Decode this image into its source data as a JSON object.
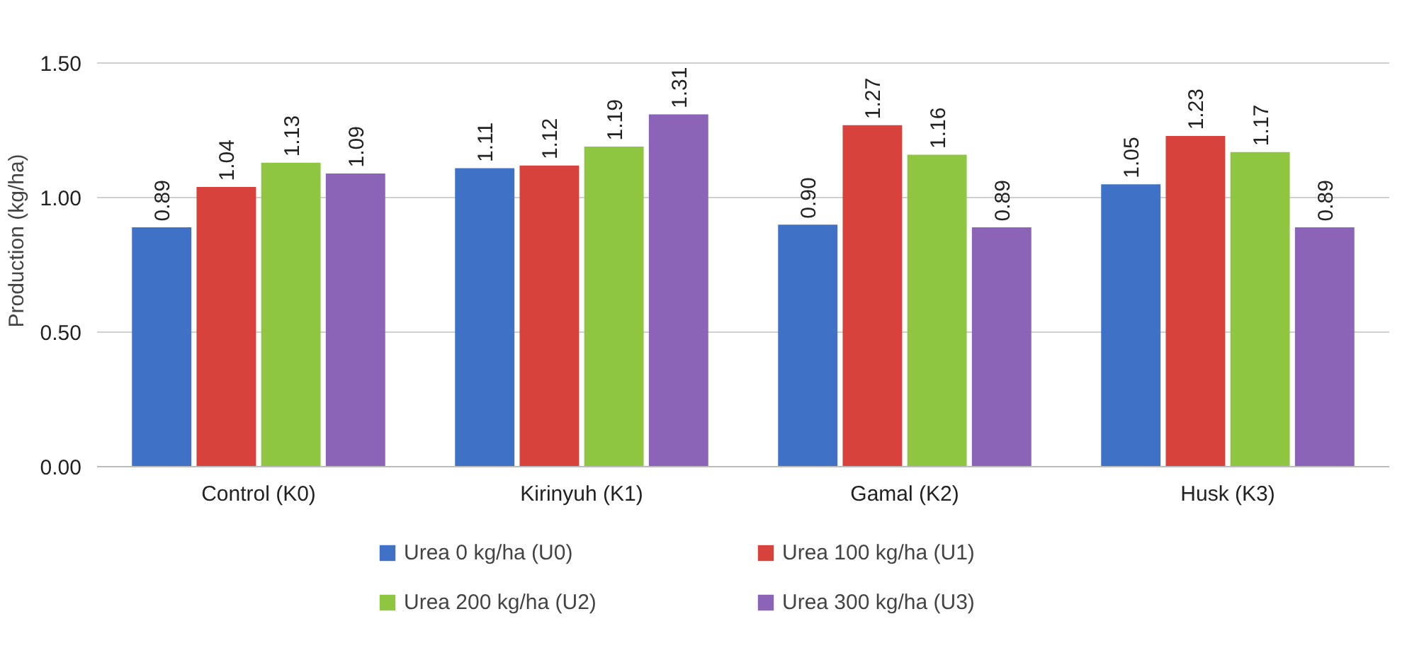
{
  "chart_data": {
    "type": "bar",
    "ylabel": "Production (kg/ha)",
    "categories": [
      "Control (K0)",
      "Kirinyuh (K1)",
      "Gamal (K2)",
      "Husk (K3)"
    ],
    "series": [
      {
        "name": "Urea 0 kg/ha (U0)",
        "color": "#3f72c6",
        "values": [
          0.89,
          1.11,
          0.9,
          1.05
        ],
        "value_labels": [
          "0.89",
          "1.11",
          "0.90",
          "1.05"
        ]
      },
      {
        "name": "Urea 100 kg/ha (U1)",
        "color": "#d8423c",
        "values": [
          1.04,
          1.12,
          1.27,
          1.23
        ],
        "value_labels": [
          "1.04",
          "1.12",
          "1.27",
          "1.23"
        ]
      },
      {
        "name": "Urea 200 kg/ha (U2)",
        "color": "#8fc641",
        "values": [
          1.13,
          1.19,
          1.16,
          1.17
        ],
        "value_labels": [
          "1.13",
          "1.19",
          "1.16",
          "1.17"
        ]
      },
      {
        "name": "Urea 300 kg/ha (U3)",
        "color": "#8b64b8",
        "values": [
          1.09,
          1.31,
          0.89,
          0.89
        ],
        "value_labels": [
          "1.09",
          "1.31",
          "0.89",
          "0.89"
        ]
      }
    ],
    "ylim": [
      0,
      1.5
    ],
    "yticks": [
      {
        "value": 0,
        "label": "0.00"
      },
      {
        "value": 0.5,
        "label": "0.50"
      },
      {
        "value": 1.0,
        "label": "1.00"
      },
      {
        "value": 1.5,
        "label": "1.50"
      }
    ],
    "grid": "y",
    "legend": "bottom"
  }
}
